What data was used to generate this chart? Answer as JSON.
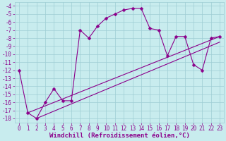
{
  "xlabel": "Windchill (Refroidissement éolien,°C)",
  "xlim": [
    -0.5,
    23.5
  ],
  "ylim": [
    -18.5,
    -3.5
  ],
  "yticks": [
    -18,
    -17,
    -16,
    -15,
    -14,
    -13,
    -12,
    -11,
    -10,
    -9,
    -8,
    -7,
    -6,
    -5,
    -4
  ],
  "xticks": [
    0,
    1,
    2,
    3,
    4,
    5,
    6,
    7,
    8,
    9,
    10,
    11,
    12,
    13,
    14,
    15,
    16,
    17,
    18,
    19,
    20,
    21,
    22,
    23
  ],
  "bg_color": "#c8ecee",
  "grid_color": "#9ecdd4",
  "line_color": "#8b008b",
  "curve_x": [
    0,
    1,
    2,
    3,
    4,
    5,
    6,
    7,
    8,
    9,
    10,
    11,
    12,
    13,
    14,
    15,
    16,
    17,
    18,
    19,
    20,
    21,
    22,
    23
  ],
  "curve_y": [
    -12.0,
    -17.3,
    -18.0,
    -16.0,
    -14.3,
    -15.8,
    -15.8,
    -7.0,
    -8.0,
    -6.5,
    -5.5,
    -5.0,
    -4.5,
    -4.3,
    -4.3,
    -6.8,
    -7.0,
    -10.2,
    -7.8,
    -7.8,
    -11.3,
    -12.0,
    -8.0,
    -7.8
  ],
  "line1_x": [
    1,
    23
  ],
  "line1_y": [
    -17.3,
    -7.8
  ],
  "line2_x": [
    2,
    23
  ],
  "line2_y": [
    -18.0,
    -8.5
  ],
  "marker": "D",
  "marker_size": 2.5,
  "line_width": 0.8,
  "tick_fontsize": 5.5,
  "xlabel_fontsize": 6.5
}
